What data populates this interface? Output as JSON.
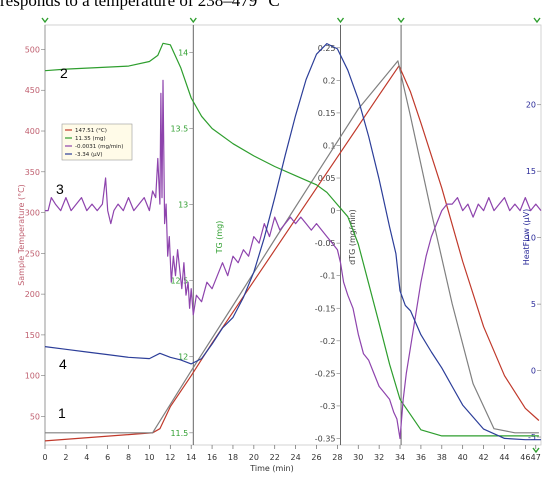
{
  "caption": "responds to a temperature of 238–479 °C",
  "chart_data": {
    "type": "line",
    "title": "",
    "xlabel": "Time (min)",
    "x_ticks": [
      0,
      2,
      4,
      6,
      8,
      10,
      12,
      14,
      16,
      18,
      20,
      22,
      24,
      26,
      28,
      30,
      32,
      34,
      36,
      38,
      40,
      42,
      44,
      46,
      47
    ],
    "xlim": [
      0,
      47.5
    ],
    "grid": false,
    "vertical_markers": [
      14.2,
      28.3,
      34.1
    ],
    "axes": {
      "temperature": {
        "label": "Sample Temperature (°C)",
        "ticks": [
          50,
          100,
          150,
          200,
          250,
          300,
          350,
          400,
          450,
          500
        ],
        "range": [
          15,
          530
        ],
        "color": "#c06070"
      },
      "mass": {
        "label": "TG (mg)",
        "ticks": [
          11.5,
          12,
          12.5,
          13,
          13.5,
          14
        ],
        "range": [
          11.42,
          14.18
        ],
        "color": "#33a033"
      },
      "dtg": {
        "label": "dTG (mg/min)",
        "ticks": [
          -0.35,
          -0.3,
          -0.25,
          -0.2,
          -0.15,
          -0.1,
          -0.05,
          0,
          0.05,
          0.1,
          0.15,
          0.2,
          0.25
        ],
        "range": [
          -0.36,
          0.285
        ],
        "color": "#444444"
      },
      "heatflow": {
        "label": "HeatFlow (µV)",
        "ticks": [
          -5,
          0,
          5,
          10,
          15,
          20
        ],
        "range": [
          -5.6,
          26
        ],
        "color": "#2a2a99"
      }
    },
    "curve_labels": [
      {
        "text": "1",
        "series": "temperature"
      },
      {
        "text": "2",
        "series": "mass"
      },
      {
        "text": "3",
        "series": "dtg"
      },
      {
        "text": "4",
        "series": "heatflow"
      }
    ],
    "legend": {
      "placement": "top-left",
      "entries": [
        {
          "text": "147.51 (°C)",
          "color": "#c0392b"
        },
        {
          "text": "11.35 (mg)",
          "color": "#2e9e2e"
        },
        {
          "text": "-0.0031 (mg/min)",
          "color": "#8e44ad"
        },
        {
          "text": "-3.34 (µV)",
          "color": "#2c3e99"
        }
      ]
    },
    "series": [
      {
        "key": "temperature",
        "axis": "temperature",
        "color": "#c0392b",
        "x": [
          0,
          10.3,
          11,
          12,
          14,
          16,
          18,
          20,
          22,
          24,
          26,
          28,
          30,
          32,
          33.9,
          35,
          36,
          38,
          40,
          42,
          44,
          46,
          47.3
        ],
        "y": [
          20,
          30,
          35,
          62,
          100,
          140,
          178,
          216,
          254,
          292,
          330,
          368,
          406,
          444,
          480,
          448,
          410,
          330,
          240,
          160,
          100,
          60,
          45
        ]
      },
      {
        "key": "reference",
        "axis": "temperature",
        "color": "#808080",
        "x": [
          0,
          10.3,
          14,
          18,
          22,
          26,
          30,
          33.8,
          35,
          37,
          39,
          41,
          43,
          45,
          47.3
        ],
        "y": [
          30,
          30,
          106,
          186,
          267,
          347,
          427,
          486,
          418,
          300,
          188,
          90,
          35,
          30,
          30
        ]
      },
      {
        "key": "mass",
        "axis": "mass",
        "color": "#2e9e2e",
        "x": [
          0,
          2,
          5,
          8,
          10,
          10.8,
          11.3,
          12,
          13,
          14,
          15,
          16,
          18,
          20,
          22,
          24,
          26,
          27,
          28,
          29,
          30,
          31,
          32,
          33,
          34,
          36,
          38,
          40,
          44,
          47.3
        ],
        "y": [
          13.88,
          13.89,
          13.9,
          13.91,
          13.94,
          13.98,
          14.06,
          14.05,
          13.9,
          13.7,
          13.58,
          13.5,
          13.4,
          13.32,
          13.25,
          13.19,
          13.13,
          13.08,
          13.0,
          12.92,
          12.74,
          12.48,
          12.22,
          11.95,
          11.72,
          11.52,
          11.48,
          11.48,
          11.48,
          11.48
        ]
      },
      {
        "key": "dtg",
        "axis": "dtg",
        "color": "#8e44ad",
        "x": [
          0,
          0.3,
          0.6,
          1,
          1.5,
          2,
          2.5,
          3,
          3.5,
          4,
          4.5,
          5,
          5.5,
          5.8,
          6,
          6.3,
          6.6,
          7,
          7.5,
          8,
          8.5,
          9,
          9.5,
          10,
          10.3,
          10.6,
          10.8,
          11,
          11.1,
          11.2,
          11.3,
          11.45,
          11.6,
          11.75,
          11.9,
          12.1,
          12.3,
          12.5,
          12.7,
          12.9,
          13.1,
          13.3,
          13.5,
          13.7,
          13.85,
          14,
          14.2,
          14.5,
          15,
          15.5,
          16,
          16.5,
          17,
          17.5,
          18,
          18.5,
          19,
          19.5,
          20,
          20.5,
          21,
          21.5,
          22,
          22.5,
          23,
          23.5,
          24,
          24.5,
          25,
          25.5,
          26,
          26.5,
          27,
          27.5,
          28,
          28.3,
          28.6,
          29,
          29.5,
          30,
          30.5,
          31,
          31.5,
          32,
          32.5,
          33,
          33.4,
          33.7,
          34,
          34.3,
          34.6,
          35,
          35.5,
          36,
          36.5,
          37,
          37.5,
          38,
          38.5,
          39,
          39.5,
          40,
          40.5,
          41,
          41.5,
          42,
          42.5,
          43,
          43.5,
          44,
          44.5,
          45,
          45.5,
          46,
          46.5,
          47,
          47.5
        ],
        "y": [
          0.0,
          0.0,
          0.02,
          0.01,
          0.0,
          0.02,
          0.0,
          0.01,
          0.02,
          0.0,
          0.01,
          0.0,
          0.01,
          0.05,
          0.0,
          -0.02,
          0.0,
          0.01,
          0.0,
          0.02,
          0.0,
          0.01,
          0.02,
          0.0,
          0.03,
          0.02,
          0.08,
          0.01,
          0.18,
          0.02,
          0.2,
          -0.02,
          0.01,
          -0.07,
          -0.04,
          -0.11,
          -0.07,
          -0.1,
          -0.06,
          -0.09,
          -0.12,
          -0.08,
          -0.13,
          -0.11,
          -0.15,
          -0.12,
          -0.16,
          -0.13,
          -0.14,
          -0.11,
          -0.12,
          -0.1,
          -0.08,
          -0.1,
          -0.07,
          -0.08,
          -0.06,
          -0.07,
          -0.04,
          -0.05,
          -0.02,
          -0.04,
          -0.01,
          -0.03,
          -0.02,
          -0.01,
          -0.02,
          -0.01,
          -0.02,
          -0.03,
          -0.02,
          -0.03,
          -0.04,
          -0.05,
          -0.06,
          -0.08,
          -0.11,
          -0.13,
          -0.15,
          -0.19,
          -0.22,
          -0.23,
          -0.25,
          -0.27,
          -0.28,
          -0.29,
          -0.31,
          -0.32,
          -0.35,
          -0.29,
          -0.25,
          -0.21,
          -0.16,
          -0.11,
          -0.07,
          -0.04,
          -0.02,
          0.0,
          0.01,
          0.01,
          0.02,
          0.0,
          0.01,
          -0.01,
          0.01,
          0.0,
          0.02,
          0.0,
          0.01,
          0.02,
          0.0,
          0.01,
          0.0,
          0.02,
          0.0,
          0.01,
          0.0
        ]
      },
      {
        "key": "heatflow",
        "axis": "heatflow",
        "color": "#2c3e99",
        "x": [
          0,
          2,
          4,
          6,
          8,
          10,
          11,
          12,
          13,
          14,
          15,
          16,
          17,
          18,
          19,
          20,
          21,
          22,
          23,
          24,
          25,
          26,
          27,
          28,
          29,
          30,
          31,
          32,
          33,
          33.6,
          34,
          34.5,
          35,
          35.5,
          36,
          37,
          38,
          39,
          40,
          42,
          44,
          46,
          47.5
        ],
        "y": [
          1.8,
          1.6,
          1.4,
          1.2,
          1.0,
          0.9,
          1.3,
          1.0,
          0.8,
          0.5,
          0.9,
          2.0,
          3.2,
          4.0,
          5.5,
          7.4,
          10.0,
          13.0,
          16.2,
          19.2,
          21.9,
          23.8,
          24.6,
          24.2,
          22.6,
          20.4,
          17.6,
          14.4,
          10.8,
          8.8,
          6.0,
          4.9,
          4.5,
          3.6,
          2.7,
          1.4,
          0.2,
          -1.2,
          -2.6,
          -4.4,
          -5.1,
          -5.2,
          -5.2
        ]
      }
    ]
  }
}
